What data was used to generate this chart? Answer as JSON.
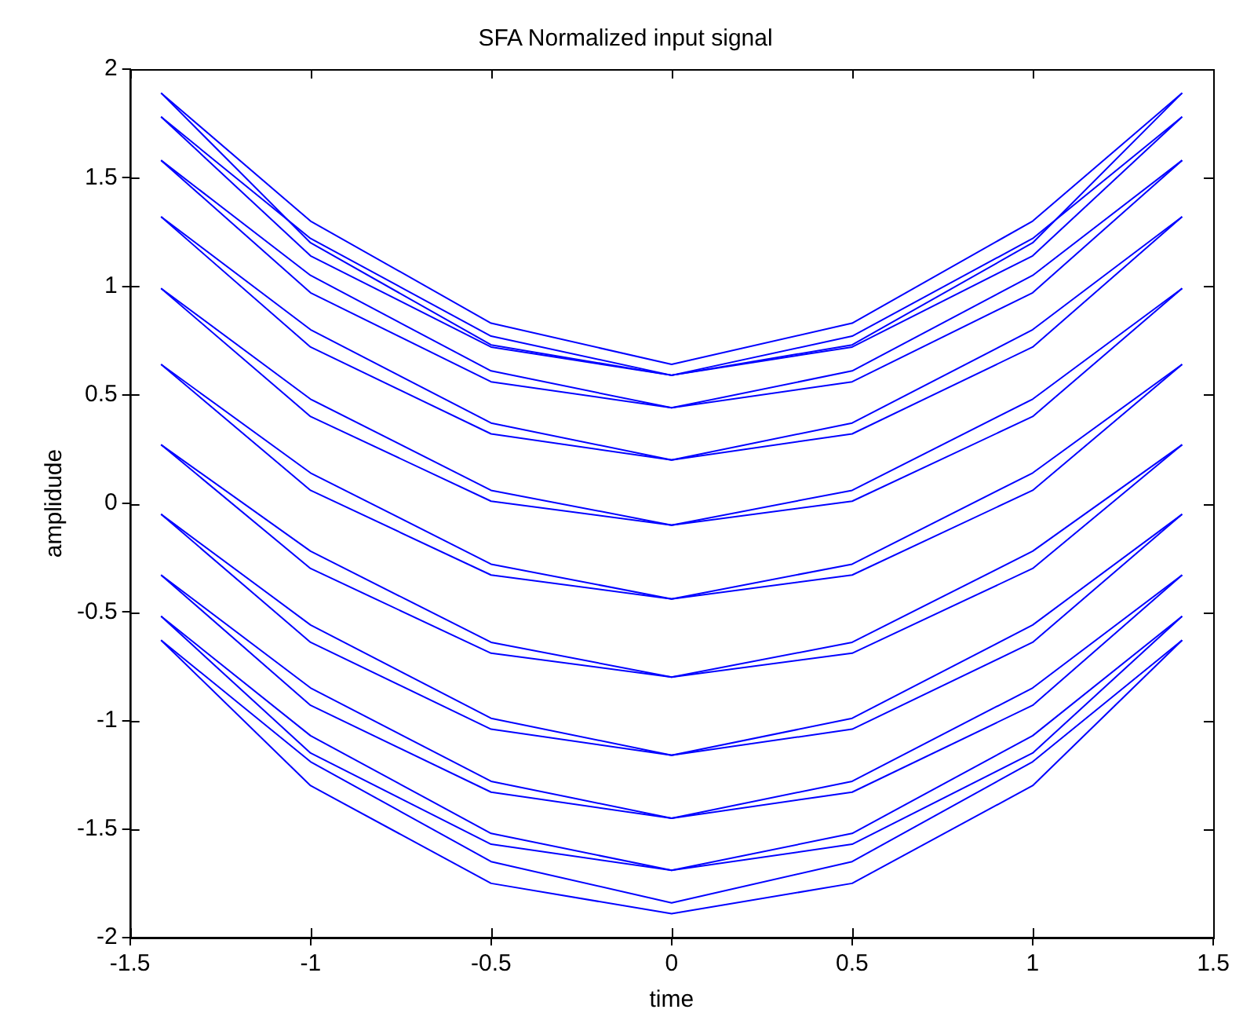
{
  "chart_data": {
    "type": "line",
    "title": "SFA Normalized input signal",
    "xlabel": "time",
    "ylabel": "amplidude",
    "x": [
      -1.414,
      -1,
      -0.5,
      0,
      0.5,
      1,
      1.414
    ],
    "series": [
      {
        "color": "#0000ff",
        "values": [
          1.89,
          1.3,
          0.83,
          0.64,
          0.83,
          1.3,
          1.89
        ]
      },
      {
        "color": "#0000ff",
        "values": [
          1.89,
          1.2,
          0.73,
          0.59,
          0.73,
          1.2,
          1.89
        ]
      },
      {
        "color": "#0000ff",
        "values": [
          1.78,
          1.22,
          0.77,
          0.59,
          0.77,
          1.22,
          1.78
        ]
      },
      {
        "color": "#0000ff",
        "values": [
          1.78,
          1.14,
          0.72,
          0.59,
          0.72,
          1.14,
          1.78
        ]
      },
      {
        "color": "#0000ff",
        "values": [
          1.58,
          1.05,
          0.61,
          0.44,
          0.61,
          1.05,
          1.58
        ]
      },
      {
        "color": "#0000ff",
        "values": [
          1.58,
          0.97,
          0.56,
          0.44,
          0.56,
          0.97,
          1.58
        ]
      },
      {
        "color": "#0000ff",
        "values": [
          1.32,
          0.8,
          0.37,
          0.2,
          0.37,
          0.8,
          1.32
        ]
      },
      {
        "color": "#0000ff",
        "values": [
          1.32,
          0.72,
          0.32,
          0.2,
          0.32,
          0.72,
          1.32
        ]
      },
      {
        "color": "#0000ff",
        "values": [
          0.99,
          0.48,
          0.06,
          -0.1,
          0.06,
          0.48,
          0.99
        ]
      },
      {
        "color": "#0000ff",
        "values": [
          0.99,
          0.4,
          0.01,
          -0.1,
          0.01,
          0.4,
          0.99
        ]
      },
      {
        "color": "#0000ff",
        "values": [
          0.64,
          0.14,
          -0.28,
          -0.44,
          -0.28,
          0.14,
          0.64
        ]
      },
      {
        "color": "#0000ff",
        "values": [
          0.64,
          0.06,
          -0.33,
          -0.44,
          -0.33,
          0.06,
          0.64
        ]
      },
      {
        "color": "#0000ff",
        "values": [
          0.27,
          -0.22,
          -0.64,
          -0.8,
          -0.64,
          -0.22,
          0.27
        ]
      },
      {
        "color": "#0000ff",
        "values": [
          0.27,
          -0.3,
          -0.69,
          -0.8,
          -0.69,
          -0.3,
          0.27
        ]
      },
      {
        "color": "#0000ff",
        "values": [
          -0.05,
          -0.56,
          -0.99,
          -1.16,
          -0.99,
          -0.56,
          -0.05
        ]
      },
      {
        "color": "#0000ff",
        "values": [
          -0.05,
          -0.64,
          -1.04,
          -1.16,
          -1.04,
          -0.64,
          -0.05
        ]
      },
      {
        "color": "#0000ff",
        "values": [
          -0.33,
          -0.85,
          -1.28,
          -1.45,
          -1.28,
          -0.85,
          -0.33
        ]
      },
      {
        "color": "#0000ff",
        "values": [
          -0.33,
          -0.93,
          -1.33,
          -1.45,
          -1.33,
          -0.93,
          -0.33
        ]
      },
      {
        "color": "#0000ff",
        "values": [
          -0.52,
          -1.07,
          -1.52,
          -1.69,
          -1.52,
          -1.07,
          -0.52
        ]
      },
      {
        "color": "#0000ff",
        "values": [
          -0.52,
          -1.15,
          -1.57,
          -1.69,
          -1.57,
          -1.15,
          -0.52
        ]
      },
      {
        "color": "#0000ff",
        "values": [
          -0.63,
          -1.19,
          -1.65,
          -1.84,
          -1.65,
          -1.19,
          -0.63
        ]
      },
      {
        "color": "#0000ff",
        "values": [
          -0.63,
          -1.3,
          -1.75,
          -1.89,
          -1.75,
          -1.3,
          -0.63
        ]
      }
    ],
    "xlim": [
      -1.5,
      1.5
    ],
    "xticks": [
      -1.5,
      -1,
      -0.5,
      0,
      0.5,
      1,
      1.5
    ],
    "ylim": [
      -2,
      2
    ],
    "yticks": [
      -2,
      -1.5,
      -1,
      -0.5,
      0,
      0.5,
      1,
      1.5,
      2
    ],
    "grid": false,
    "legend": false
  }
}
